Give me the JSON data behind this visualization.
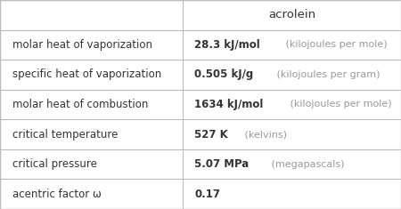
{
  "title": "acrolein",
  "rows": [
    {
      "label": "molar heat of vaporization",
      "label_italic": false,
      "value_bold": "28.3 kJ/mol",
      "value_light": " (kilojoules per mole)"
    },
    {
      "label": "specific heat of vaporization",
      "label_italic": false,
      "value_bold": "0.505 kJ/g",
      "value_light": " (kilojoules per gram)"
    },
    {
      "label": "molar heat of combustion",
      "label_italic": false,
      "value_bold": "1634 kJ/mol",
      "value_light": " (kilojoules per mole)"
    },
    {
      "label": "critical temperature",
      "label_italic": false,
      "value_bold": "527 K",
      "value_light": " (kelvins)"
    },
    {
      "label": "critical pressure",
      "label_italic": false,
      "value_bold": "5.07 MPa",
      "value_light": " (megapascals)"
    },
    {
      "label": "acentric factor ω",
      "label_italic": false,
      "value_bold": "0.17",
      "value_light": ""
    }
  ],
  "col_split": 0.455,
  "bg_color": "#ffffff",
  "border_color": "#bbbbbb",
  "text_color": "#333333",
  "unit_color": "#999999",
  "label_fontsize": 8.5,
  "value_fontsize": 8.5,
  "unit_fontsize": 8.0,
  "title_fontsize": 9.5
}
